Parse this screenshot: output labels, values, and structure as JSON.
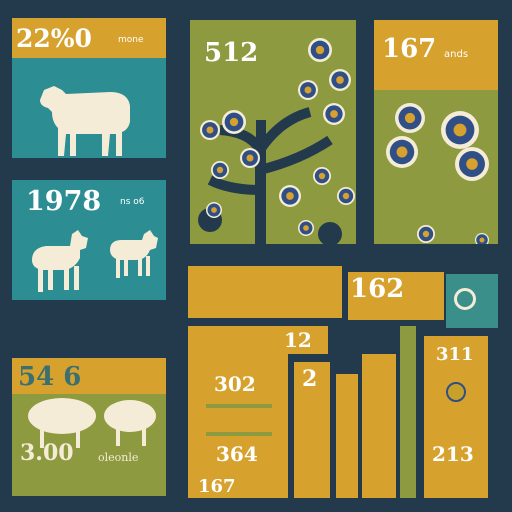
{
  "panels": {
    "top_left": {
      "value": "22%0",
      "caption": "mone",
      "icon": "cow-icon"
    },
    "middle_left": {
      "value": "1978",
      "caption": "ns o6",
      "icon": "sheep-icon"
    },
    "bottom_left": {
      "value": "54 6",
      "value2": "3.00",
      "caption": "oleonle",
      "icon": "sheep-icon"
    },
    "tree_panel": {
      "value": "512",
      "icon": "flowering-tree-icon"
    },
    "flower_panel": {
      "value": "167",
      "caption": "ands",
      "icon": "flower-icon"
    },
    "bar_group": {
      "header_value": "162",
      "box_value": "12",
      "box_values": [
        "302",
        "364",
        "167"
      ],
      "col_value": "2",
      "right_values": [
        "311",
        "213"
      ]
    }
  },
  "colors": {
    "background": "#233a4c",
    "mustard": "#d7a12e",
    "teal": "#2c8d93",
    "olive": "#8e9a3f",
    "cream": "#f4ecd6",
    "navy_blossom": "#2f4f86"
  }
}
